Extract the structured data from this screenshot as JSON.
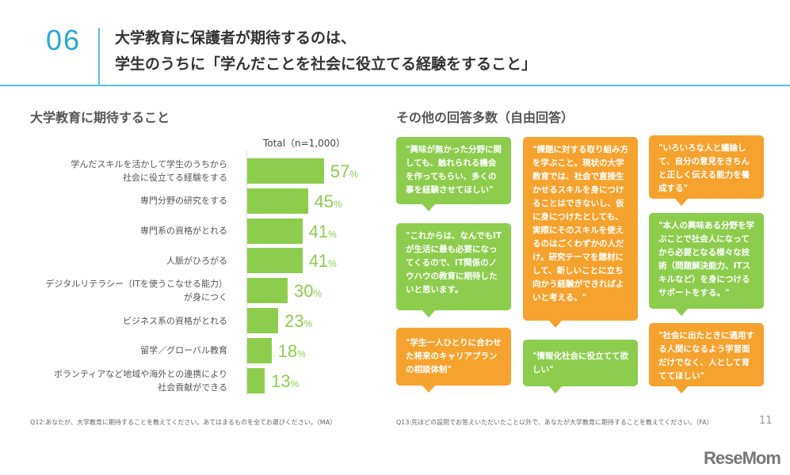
{
  "header": {
    "number": "06",
    "title_line1": "大学教育に保護者が期待するのは、",
    "title_line2": "学生のうちに「学んだことを社会に役立てる経験をすること」"
  },
  "left": {
    "heading": "大学教育に期待すること",
    "note": "Q12:あなたが、大学教育に期待することを教えてください。あてはまるものを全てお選びください。（MA）"
  },
  "chart_data": {
    "type": "bar",
    "orientation": "horizontal",
    "title": "Total（n=1,000）",
    "unit": "%",
    "categories": [
      [
        "学んだスキルを活かして学生のうちから",
        "社会に役立てる経験をする"
      ],
      [
        "専門分野の研究をする"
      ],
      [
        "専門系の資格がとれる"
      ],
      [
        "人脈がひろがる"
      ],
      [
        "デジタルリテラシー（ITを使うこなせる能力）",
        "が身につく"
      ],
      [
        "ビジネス系の資格がとれる"
      ],
      [
        "留学／グローバル教育"
      ],
      [
        "ボランティアなど地域や海外との連携により",
        "社会貢献ができる"
      ]
    ],
    "values": [
      57,
      45,
      41,
      41,
      30,
      23,
      18,
      13
    ],
    "color": "#8ccd4e"
  },
  "right": {
    "heading": "その他の回答多数（自由回答）",
    "note": "Q13:先ほどの設問でお答えいただいたこと以外で、あなたが大学教育に期待することを教えてください。（FA）",
    "bubbles": [
      {
        "text": "\"興味が無かった分野に関しても、触れられる機会を作ってもらい、多くの事を経験させてほしい\"",
        "color": "green"
      },
      {
        "text": "\"これからは、なんでもITが生活に最も必要になってくるので、IT関係のノウハウの教育に期待したいと思います。",
        "color": "green"
      },
      {
        "text": "\"学生一人ひとりに合わせた将来のキャリアプランの相談体制\"",
        "color": "orange"
      },
      {
        "text": "\"課題に対する取り組み方を学ぶこと。現状の大学教育では、社会で直接生かせるスキルを身につけることはできないし、仮に身につけたとしても、実際にそのスキルを使えるのはごくわずかの人だけ。研究テーマを題材にして、新しいことに立ち向かう経験ができればよいと考える。\"",
        "color": "orange"
      },
      {
        "text": "\"情報化社会に役立てて欲しい\"",
        "color": "green"
      },
      {
        "text": "\"いろいろな人と議論して、自分の意見をきちんと正しく伝える能力を養成する\"",
        "color": "orange"
      },
      {
        "text": "\"本人の興味ある分野を学ぶことで社会人になってから必要となる様々な技術（問題解決能力、ITスキルなど）を身につけるサポートをする。\"",
        "color": "green"
      },
      {
        "text": "\"社会に出たときに通用する人間になるよう学習面だけでなく、人として育ててほしい\"",
        "color": "orange"
      }
    ]
  },
  "page_number": "11",
  "logo": "ReseMom"
}
